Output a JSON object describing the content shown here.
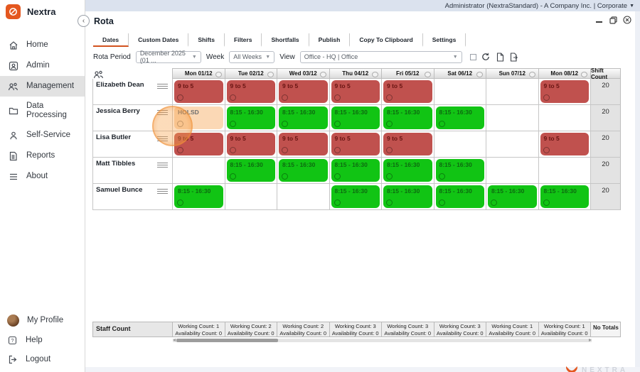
{
  "topbar": {
    "account_text": "Administrator (NextraStandard) - A Company Inc. | Corporate"
  },
  "sidebar": {
    "brand": "Nextra",
    "items": [
      {
        "label": "Home",
        "icon": "home-icon",
        "active": false
      },
      {
        "label": "Admin",
        "icon": "admin-icon",
        "active": false
      },
      {
        "label": "Management",
        "icon": "people-icon",
        "active": true
      },
      {
        "label": "Data Processing",
        "icon": "folder-icon",
        "active": false
      },
      {
        "label": "Self-Service",
        "icon": "person-icon",
        "active": false
      },
      {
        "label": "Reports",
        "icon": "report-icon",
        "active": false
      },
      {
        "label": "About",
        "icon": "lines-icon",
        "active": false
      }
    ],
    "footer_items": [
      {
        "label": "My Profile",
        "icon": "avatar"
      },
      {
        "label": "Help",
        "icon": "help-icon"
      },
      {
        "label": "Logout",
        "icon": "logout-icon"
      }
    ]
  },
  "page": {
    "title": "Rota"
  },
  "tabs": {
    "active": "Dates",
    "items": [
      "Dates",
      "Custom Dates",
      "Shifts",
      "Filters",
      "Shortfalls",
      "Publish",
      "Copy To Clipboard",
      "Settings"
    ]
  },
  "filters": {
    "rota_period_label": "Rota Period",
    "rota_period_value": "December 2025 (01 ...",
    "week_label": "Week",
    "week_value": "All Weeks",
    "view_label": "View",
    "view_value": "Office - HQ | Office"
  },
  "grid": {
    "columns": [
      "Mon 01/12",
      "Tue 02/12",
      "Wed 03/12",
      "Thu 04/12",
      "Fri 05/12",
      "Sat 06/12",
      "Sun 07/12",
      "Mon 08/12"
    ],
    "shift_count_header": "Shift Count",
    "rows": [
      {
        "name": "Elizabeth Dean",
        "shift_count": "20",
        "cells": [
          {
            "label": "9 to 5",
            "type": "red"
          },
          {
            "label": "9 to 5",
            "type": "red"
          },
          {
            "label": "9 to 5",
            "type": "red"
          },
          {
            "label": "9 to 5",
            "type": "red"
          },
          {
            "label": "9 to 5",
            "type": "red"
          },
          {
            "type": "empty"
          },
          {
            "type": "empty"
          },
          {
            "label": "9 to 5",
            "type": "red"
          }
        ]
      },
      {
        "name": "Jessica Berry",
        "shift_count": "20",
        "cells": [
          {
            "label": "HOLSD",
            "type": "holiday"
          },
          {
            "label": "8:15 - 16:30",
            "type": "green"
          },
          {
            "label": "8:15 - 16:30",
            "type": "green"
          },
          {
            "label": "8:15 - 16:30",
            "type": "green"
          },
          {
            "label": "8:15 - 16:30",
            "type": "green"
          },
          {
            "label": "8:15 - 16:30",
            "type": "green"
          },
          {
            "type": "empty"
          },
          {
            "type": "empty"
          }
        ]
      },
      {
        "name": "Lisa Butler",
        "shift_count": "20",
        "cells": [
          {
            "label": "9 to 5",
            "type": "red"
          },
          {
            "label": "9 to 5",
            "type": "red"
          },
          {
            "label": "9 to 5",
            "type": "red"
          },
          {
            "label": "9 to 5",
            "type": "red"
          },
          {
            "label": "9 to 5",
            "type": "red"
          },
          {
            "type": "empty"
          },
          {
            "type": "empty"
          },
          {
            "label": "9 to 5",
            "type": "red"
          }
        ]
      },
      {
        "name": "Matt Tibbles",
        "shift_count": "20",
        "cells": [
          {
            "type": "empty"
          },
          {
            "label": "8:15 - 16:30",
            "type": "green"
          },
          {
            "label": "8:15 - 16:30",
            "type": "green"
          },
          {
            "label": "8:15 - 16:30",
            "type": "green"
          },
          {
            "label": "8:15 - 16:30",
            "type": "green"
          },
          {
            "label": "8:15 - 16:30",
            "type": "green"
          },
          {
            "type": "empty"
          },
          {
            "type": "empty"
          }
        ]
      },
      {
        "name": "Samuel Bunce",
        "shift_count": "20",
        "cells": [
          {
            "label": "8:15 - 16:30",
            "type": "green"
          },
          {
            "type": "empty"
          },
          {
            "type": "empty"
          },
          {
            "label": "8:15 - 16:30",
            "type": "green"
          },
          {
            "label": "8:15 - 16:30",
            "type": "green"
          },
          {
            "label": "8:15 - 16:30",
            "type": "green"
          },
          {
            "label": "8:15 - 16:30",
            "type": "green"
          },
          {
            "label": "8:15 - 16:30",
            "type": "green"
          }
        ]
      }
    ]
  },
  "staff_count": {
    "label": "Staff Count",
    "no_totals": "No Totals",
    "cells": [
      {
        "line1": "Working Count: 1",
        "line2": "Availability Count: 0"
      },
      {
        "line1": "Working Count: 2",
        "line2": "Availability Count: 0"
      },
      {
        "line1": "Working Count: 2",
        "line2": "Availability Count: 0"
      },
      {
        "line1": "Working Count: 3",
        "line2": "Availability Count: 0"
      },
      {
        "line1": "Working Count: 3",
        "line2": "Availability Count: 0"
      },
      {
        "line1": "Working Count: 3",
        "line2": "Availability Count: 0"
      },
      {
        "line1": "Working Count: 1",
        "line2": "Availability Count: 0"
      },
      {
        "line1": "Working Count: 1",
        "line2": "Availability Count: 0"
      }
    ]
  },
  "watermark": "NEXTRA",
  "colors": {
    "accent_orange": "#e4571f",
    "tab_underline": "#d2521e",
    "shift_red": "#c0514e",
    "shift_green": "#11c414",
    "holiday_peach": "#fbd8b5",
    "topstrip_blue": "#dbe2ee",
    "active_nav_gray": "#e2e2e2"
  }
}
